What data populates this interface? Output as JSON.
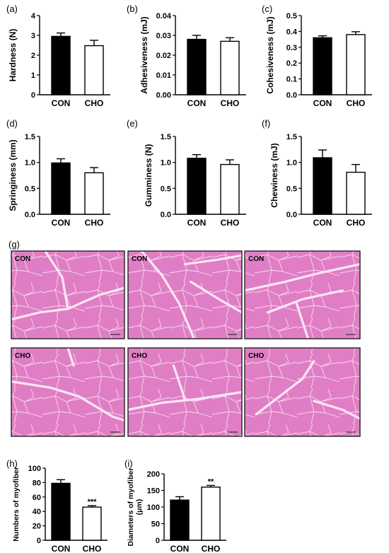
{
  "chart_data": [
    {
      "id": "a",
      "panel_label": "(a)",
      "type": "bar",
      "categories": [
        "CON",
        "CHO"
      ],
      "values": [
        2.95,
        2.48
      ],
      "errors": [
        0.17,
        0.27
      ],
      "ylabel": "Hardness (N)",
      "ylim": [
        0,
        4
      ],
      "yticks": [
        "0",
        "1",
        "2",
        "3",
        "4"
      ],
      "significance": [
        "",
        ""
      ]
    },
    {
      "id": "b",
      "panel_label": "(b)",
      "type": "bar",
      "categories": [
        "CON",
        "CHO"
      ],
      "values": [
        0.028,
        0.027
      ],
      "errors": [
        0.002,
        0.0018
      ],
      "ylabel": "Adhesiveness (mJ)",
      "ylim": [
        0,
        0.04
      ],
      "yticks": [
        "0.00",
        "0.01",
        "0.02",
        "0.03",
        "0.04"
      ],
      "significance": [
        "",
        ""
      ]
    },
    {
      "id": "c",
      "panel_label": "(c)",
      "type": "bar",
      "categories": [
        "CON",
        "CHO"
      ],
      "values": [
        0.36,
        0.38
      ],
      "errors": [
        0.012,
        0.018
      ],
      "ylabel": "Cohesiveness (mJ)",
      "ylim": [
        0,
        0.5
      ],
      "yticks": [
        "0.0",
        "0.1",
        "0.2",
        "0.3",
        "0.4",
        "0.5"
      ],
      "significance": [
        "",
        ""
      ]
    },
    {
      "id": "d",
      "panel_label": "(d)",
      "type": "bar",
      "categories": [
        "CON",
        "CHO"
      ],
      "values": [
        0.99,
        0.8
      ],
      "errors": [
        0.08,
        0.1
      ],
      "ylabel": "Springiness (mm)",
      "ylim": [
        0,
        1.5
      ],
      "yticks": [
        "0.0",
        "0.5",
        "1.0",
        "1.5"
      ],
      "significance": [
        "",
        ""
      ]
    },
    {
      "id": "e",
      "panel_label": "(e)",
      "type": "bar",
      "categories": [
        "CON",
        "CHO"
      ],
      "values": [
        1.08,
        0.96
      ],
      "errors": [
        0.07,
        0.09
      ],
      "ylabel": "Gumminess (N)",
      "ylim": [
        0,
        1.5
      ],
      "yticks": [
        "0.0",
        "0.5",
        "1.0",
        "1.5"
      ],
      "significance": [
        "",
        ""
      ]
    },
    {
      "id": "f",
      "panel_label": "(f)",
      "type": "bar",
      "categories": [
        "CON",
        "CHO"
      ],
      "values": [
        1.09,
        0.81
      ],
      "errors": [
        0.15,
        0.15
      ],
      "ylabel": "Chewiness (mJ)",
      "ylim": [
        0,
        1.5
      ],
      "yticks": [
        "0.0",
        "0.5",
        "1.0",
        "1.5"
      ],
      "significance": [
        "",
        ""
      ]
    },
    {
      "id": "h",
      "panel_label": "(h)",
      "type": "bar",
      "categories": [
        "CON",
        "CHO"
      ],
      "values": [
        79,
        46
      ],
      "errors": [
        5,
        2
      ],
      "ylabel": "Numbers of myofiber",
      "ylim": [
        0,
        100
      ],
      "yticks": [
        "0",
        "20",
        "40",
        "60",
        "80",
        "100"
      ],
      "significance": [
        "",
        "***"
      ]
    },
    {
      "id": "i",
      "panel_label": "(i)",
      "type": "bar",
      "categories": [
        "CON",
        "CHO"
      ],
      "values": [
        121,
        160
      ],
      "errors": [
        10,
        5
      ],
      "ylabel": "Diameters of myofiber",
      "ylabel2": "(μm)",
      "ylim": [
        0,
        200
      ],
      "yticks": [
        "0",
        "50",
        "100",
        "150",
        "200"
      ],
      "significance": [
        "",
        "**"
      ]
    }
  ],
  "histology": {
    "panel_label": "(g)",
    "images": [
      {
        "group": "CON",
        "label": "CON"
      },
      {
        "group": "CON",
        "label": "CON"
      },
      {
        "group": "CON",
        "label": "CON"
      },
      {
        "group": "CHO",
        "label": "CHO"
      },
      {
        "group": "CHO",
        "label": "CHO"
      },
      {
        "group": "CHO",
        "label": "CHO"
      }
    ],
    "tissue_color": "#e07ec5",
    "gap_color": "#fbe6f4"
  },
  "colors": {
    "con_fill": "#000000",
    "cho_fill": "#ffffff",
    "axis": "#000000"
  }
}
